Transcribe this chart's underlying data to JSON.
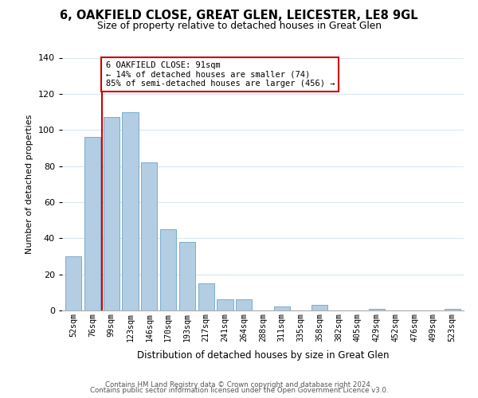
{
  "title": "6, OAKFIELD CLOSE, GREAT GLEN, LEICESTER, LE8 9GL",
  "subtitle": "Size of property relative to detached houses in Great Glen",
  "xlabel": "Distribution of detached houses by size in Great Glen",
  "ylabel": "Number of detached properties",
  "bar_labels": [
    "52sqm",
    "76sqm",
    "99sqm",
    "123sqm",
    "146sqm",
    "170sqm",
    "193sqm",
    "217sqm",
    "241sqm",
    "264sqm",
    "288sqm",
    "311sqm",
    "335sqm",
    "358sqm",
    "382sqm",
    "405sqm",
    "429sqm",
    "452sqm",
    "476sqm",
    "499sqm",
    "523sqm"
  ],
  "bar_values": [
    30,
    96,
    107,
    110,
    82,
    45,
    38,
    15,
    6,
    6,
    0,
    2,
    0,
    3,
    0,
    0,
    1,
    0,
    0,
    0,
    1
  ],
  "bar_color": "#b3cde3",
  "bar_edge_color": "#7aadcc",
  "vline_color": "#cc0000",
  "annotation_text": "6 OAKFIELD CLOSE: 91sqm\n← 14% of detached houses are smaller (74)\n85% of semi-detached houses are larger (456) →",
  "annotation_box_color": "#ffffff",
  "annotation_box_edge": "#cc0000",
  "ylim": [
    0,
    140
  ],
  "yticks": [
    0,
    20,
    40,
    60,
    80,
    100,
    120,
    140
  ],
  "footer_line1": "Contains HM Land Registry data © Crown copyright and database right 2024.",
  "footer_line2": "Contains public sector information licensed under the Open Government Licence v3.0.",
  "background_color": "#ffffff",
  "grid_color": "#d8e8f0"
}
